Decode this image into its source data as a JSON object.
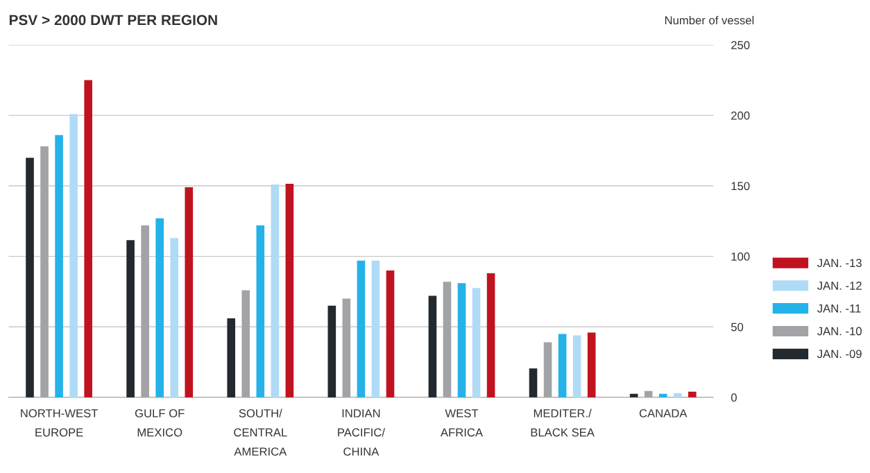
{
  "chart_data": {
    "type": "bar",
    "title": "PSV > 2000 DWT PER REGION",
    "ylabel": "Number of vessel",
    "categories": [
      "NORTH-WEST\nEUROPE",
      "GULF OF\nMEXICO",
      "SOUTH/\nCENTRAL\nAMERICA",
      "INDIAN\nPACIFIC/\nCHINA",
      "WEST\nAFRICA",
      "MEDITER./\nBLACK SEA",
      "CANADA"
    ],
    "series": [
      {
        "name": "JAN. -09",
        "color": "#22292f",
        "values": [
          170,
          111.5,
          56,
          65,
          72,
          20.5,
          2.5
        ]
      },
      {
        "name": "JAN. -10",
        "color": "#a1a3a6",
        "values": [
          178,
          122,
          76,
          70,
          82,
          39,
          4.5
        ]
      },
      {
        "name": "JAN. -11",
        "color": "#25b2e8",
        "values": [
          186,
          127,
          122,
          97,
          81,
          45,
          2.5
        ]
      },
      {
        "name": "JAN. -12",
        "color": "#b0dbf6",
        "values": [
          201,
          113,
          151,
          97,
          77.5,
          44,
          3
        ]
      },
      {
        "name": "JAN. -13",
        "color": "#c0131f",
        "values": [
          225,
          149,
          151.5,
          90,
          88,
          46,
          4
        ]
      }
    ],
    "ylim": [
      0,
      250
    ],
    "yticks": [
      0,
      50,
      100,
      150,
      200,
      250
    ],
    "grid": "y",
    "legend": "right"
  }
}
